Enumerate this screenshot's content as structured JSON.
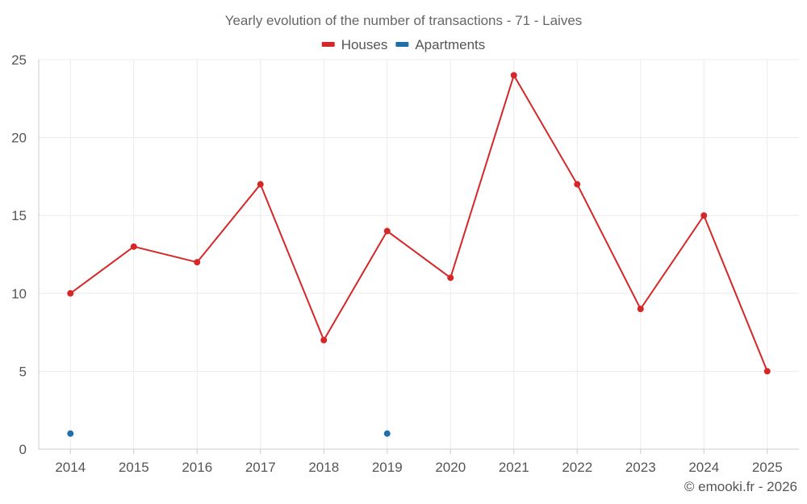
{
  "chart_data": {
    "type": "line",
    "title": "Yearly evolution of the number of transactions - 71 - Laives",
    "categories": [
      "2014",
      "2015",
      "2016",
      "2017",
      "2018",
      "2019",
      "2020",
      "2021",
      "2022",
      "2023",
      "2024",
      "2025"
    ],
    "series": [
      {
        "name": "Houses",
        "color": "#d62728",
        "values": [
          10,
          13,
          12,
          17,
          7,
          14,
          11,
          24,
          17,
          9,
          15,
          5
        ]
      },
      {
        "name": "Apartments",
        "color": "#1f6fa8",
        "values": [
          1,
          null,
          null,
          null,
          null,
          1,
          null,
          null,
          null,
          null,
          null,
          null
        ]
      }
    ],
    "ylim": [
      0,
      25
    ],
    "yticks": [
      0,
      5,
      10,
      15,
      20,
      25
    ],
    "xlabel": "",
    "ylabel": "",
    "grid": true,
    "legend_position": "top-center"
  },
  "credit": "© emooki.fr - 2026"
}
